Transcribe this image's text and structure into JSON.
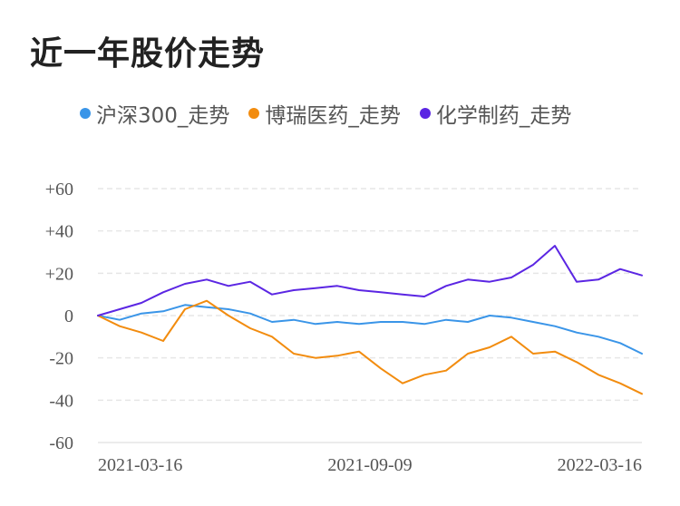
{
  "title": "近一年股价走势",
  "chart_data": {
    "type": "line",
    "title": "近一年股价走势",
    "xlabel": "",
    "ylabel": "",
    "ylim": [
      -60,
      60
    ],
    "y_ticks": [
      "+60",
      "+40",
      "+20",
      "0",
      "-20",
      "-40",
      "-60"
    ],
    "y_tick_values": [
      60,
      40,
      20,
      0,
      -20,
      -40,
      -60
    ],
    "x_ticks": [
      "2021-03-16",
      "2021-09-09",
      "2022-03-16"
    ],
    "grid": true,
    "legend_position": "top",
    "x": [
      "2021-03-16",
      "2021-03-31",
      "2021-04-15",
      "2021-04-30",
      "2021-05-15",
      "2021-05-30",
      "2021-06-14",
      "2021-06-29",
      "2021-07-14",
      "2021-07-29",
      "2021-08-13",
      "2021-08-28",
      "2021-09-09",
      "2021-09-24",
      "2021-10-09",
      "2021-10-24",
      "2021-11-08",
      "2021-11-23",
      "2021-12-08",
      "2021-12-23",
      "2022-01-07",
      "2022-01-22",
      "2022-02-06",
      "2022-02-21",
      "2022-03-08",
      "2022-03-16"
    ],
    "series": [
      {
        "name": "沪深300_走势",
        "color": "#3a95e8",
        "values": [
          0,
          -2,
          1,
          2,
          5,
          4,
          3,
          1,
          -3,
          -2,
          -4,
          -3,
          -4,
          -3,
          -3,
          -4,
          -2,
          -3,
          0,
          -1,
          -3,
          -5,
          -8,
          -10,
          -13,
          -18
        ]
      },
      {
        "name": "博瑞医药_走势",
        "color": "#f28c0f",
        "values": [
          0,
          -5,
          -8,
          -12,
          3,
          7,
          0,
          -6,
          -10,
          -18,
          -20,
          -19,
          -17,
          -25,
          -32,
          -28,
          -26,
          -18,
          -15,
          -10,
          -18,
          -17,
          -22,
          -28,
          -32,
          -37
        ]
      },
      {
        "name": "化学制药_走势",
        "color": "#5b26e3",
        "values": [
          0,
          3,
          6,
          11,
          15,
          17,
          14,
          16,
          10,
          12,
          13,
          14,
          12,
          11,
          10,
          9,
          14,
          17,
          16,
          18,
          24,
          33,
          16,
          17,
          22,
          19
        ]
      }
    ]
  }
}
